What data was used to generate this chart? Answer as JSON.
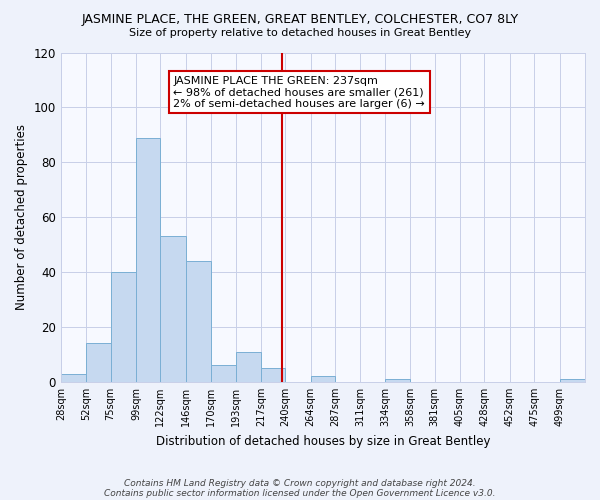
{
  "title": "JASMINE PLACE, THE GREEN, GREAT BENTLEY, COLCHESTER, CO7 8LY",
  "subtitle": "Size of property relative to detached houses in Great Bentley",
  "xlabel": "Distribution of detached houses by size in Great Bentley",
  "ylabel": "Number of detached properties",
  "bin_labels": [
    "28sqm",
    "52sqm",
    "75sqm",
    "99sqm",
    "122sqm",
    "146sqm",
    "170sqm",
    "193sqm",
    "217sqm",
    "240sqm",
    "264sqm",
    "287sqm",
    "311sqm",
    "334sqm",
    "358sqm",
    "381sqm",
    "405sqm",
    "428sqm",
    "452sqm",
    "475sqm",
    "499sqm"
  ],
  "bin_edges": [
    28,
    52,
    75,
    99,
    122,
    146,
    170,
    193,
    217,
    240,
    264,
    287,
    311,
    334,
    358,
    381,
    405,
    428,
    452,
    475,
    499
  ],
  "bar_heights": [
    3,
    14,
    40,
    89,
    53,
    44,
    6,
    11,
    5,
    0,
    2,
    0,
    0,
    1,
    0,
    0,
    0,
    0,
    0,
    0,
    1
  ],
  "bar_color": "#c6d9f0",
  "bar_edge_color": "#7aafd4",
  "reference_line_x": 237,
  "reference_line_color": "#cc0000",
  "annotation_line1": "JASMINE PLACE THE GREEN: 237sqm",
  "annotation_line2": "← 98% of detached houses are smaller (261)",
  "annotation_line3": "2% of semi-detached houses are larger (6) →",
  "annotation_box_edge_color": "#cc0000",
  "ylim": [
    0,
    120
  ],
  "yticks": [
    0,
    20,
    40,
    60,
    80,
    100,
    120
  ],
  "footer_line1": "Contains HM Land Registry data © Crown copyright and database right 2024.",
  "footer_line2": "Contains public sector information licensed under the Open Government Licence v3.0.",
  "background_color": "#eef2fb",
  "plot_background_color": "#f7f9ff",
  "grid_color": "#c8cfe8"
}
